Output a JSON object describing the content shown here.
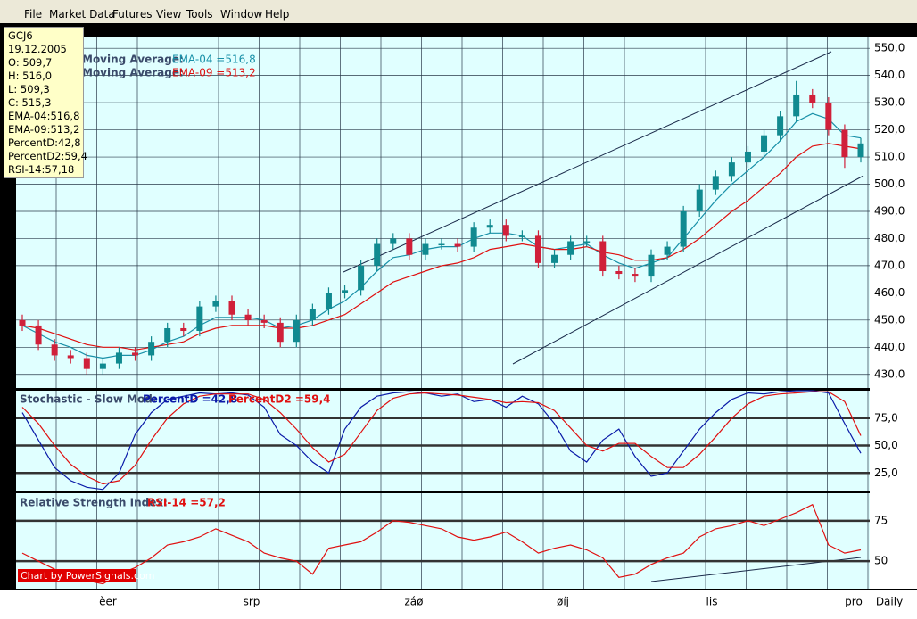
{
  "menu": [
    "File",
    "Market Data",
    "Futures",
    "View",
    "Tools",
    "Window",
    "Help"
  ],
  "info": [
    "GCJ6",
    "19.12.2005",
    "O: 509,7",
    "H: 516,0",
    "L: 509,3",
    "C: 515,3",
    "EMA-04:516,8",
    "EMA-09:513,2",
    "PercentD:42,8",
    "PercentD2:59,4",
    "RSI-14:57,18"
  ],
  "price": {
    "legend": [
      {
        "label": "Moving Average:",
        "name": "EMA-04 =516,8"
      },
      {
        "label": "Moving Average:",
        "name": "EMA-09 =513,2"
      }
    ],
    "ylim": [
      425,
      554
    ],
    "yticks": [
      {
        "value": 430,
        "label": "430,0"
      },
      {
        "value": 440,
        "label": "440,0"
      },
      {
        "value": 450,
        "label": "450,0"
      },
      {
        "value": 460,
        "label": "460,0"
      },
      {
        "value": 470,
        "label": "470,0"
      },
      {
        "value": 480,
        "label": "480,0"
      },
      {
        "value": 490,
        "label": "490,0"
      },
      {
        "value": 500,
        "label": "500,0"
      },
      {
        "value": 510,
        "label": "510,0"
      },
      {
        "value": 520,
        "label": "520,0"
      },
      {
        "value": 530,
        "label": "530,0"
      },
      {
        "value": 540,
        "label": "540,0"
      },
      {
        "value": 550,
        "label": "550,0"
      }
    ],
    "open": [
      450,
      448,
      441,
      437,
      436,
      432,
      434,
      438,
      437,
      442,
      447,
      446,
      455,
      457,
      452,
      450,
      449,
      442,
      450,
      454,
      460,
      461,
      470,
      478,
      480,
      474,
      478,
      478,
      477,
      484,
      485,
      481,
      481,
      471,
      474,
      479,
      479,
      468,
      467,
      466,
      474,
      477,
      490,
      498,
      503,
      508,
      512,
      518,
      525,
      533,
      530,
      520,
      510
    ],
    "high": [
      452,
      450,
      443,
      439,
      438,
      436,
      440,
      440,
      444,
      449,
      449,
      457,
      459,
      459,
      454,
      452,
      451,
      452,
      456,
      462,
      463,
      472,
      480,
      482,
      482,
      480,
      480,
      480,
      486,
      487,
      487,
      483,
      483,
      476,
      481,
      481,
      481,
      470,
      469,
      476,
      479,
      492,
      500,
      505,
      510,
      514,
      520,
      527,
      538,
      535,
      532,
      522,
      517
    ],
    "low": [
      446,
      439,
      435,
      434,
      430,
      430,
      432,
      435,
      435,
      440,
      444,
      444,
      453,
      450,
      448,
      447,
      440,
      440,
      448,
      452,
      458,
      459,
      468,
      476,
      472,
      472,
      476,
      475,
      475,
      482,
      479,
      479,
      469,
      469,
      472,
      477,
      466,
      465,
      464,
      464,
      472,
      475,
      488,
      496,
      501,
      506,
      510,
      516,
      523,
      528,
      518,
      506,
      508
    ],
    "close": [
      448,
      441,
      437,
      436,
      432,
      434,
      438,
      437,
      442,
      447,
      446,
      455,
      457,
      452,
      450,
      449,
      442,
      450,
      454,
      460,
      461,
      470,
      478,
      480,
      474,
      478,
      478,
      477,
      484,
      485,
      481,
      481,
      471,
      474,
      479,
      479,
      468,
      467,
      466,
      474,
      477,
      490,
      498,
      503,
      508,
      512,
      518,
      525,
      533,
      530,
      520,
      510,
      515
    ],
    "series": [
      {
        "color": "#1890a8",
        "values": [
          448,
          445,
          442,
          440,
          437,
          436,
          437,
          437,
          439,
          442,
          444,
          448,
          451,
          451,
          451,
          450,
          447,
          448,
          450,
          454,
          457,
          462,
          468,
          473,
          474,
          476,
          477,
          477,
          480,
          482,
          482,
          481,
          477,
          476,
          477,
          478,
          474,
          471,
          469,
          471,
          473,
          480,
          487,
          494,
          500,
          505,
          510,
          516,
          523,
          526,
          524,
          518,
          517
        ]
      },
      {
        "color": "#e01010",
        "values": [
          448,
          447,
          445,
          443,
          441,
          440,
          440,
          439,
          440,
          441,
          442,
          445,
          447,
          448,
          448,
          448,
          447,
          447,
          448,
          450,
          452,
          456,
          460,
          464,
          466,
          468,
          470,
          471,
          473,
          476,
          477,
          478,
          477,
          476,
          476,
          477,
          475,
          474,
          472,
          472,
          473,
          476,
          480,
          485,
          490,
          494,
          499,
          504,
          510,
          514,
          515,
          514,
          513
        ]
      }
    ]
  },
  "stochastic": {
    "title": "Stochastic - Slow Mod:",
    "ylim": [
      9,
      100
    ],
    "yticks": [
      {
        "value": 25,
        "label": "25,0"
      },
      {
        "value": 50,
        "label": "50,0"
      },
      {
        "value": 75,
        "label": "75,0"
      }
    ],
    "series": [
      {
        "name": "PercentD =42,8",
        "color": "#0a1aa8",
        "values": [
          80,
          55,
          30,
          18,
          12,
          10,
          25,
          60,
          80,
          92,
          95,
          98,
          97,
          98,
          96,
          85,
          60,
          50,
          35,
          25,
          65,
          85,
          95,
          98,
          99,
          98,
          95,
          97,
          90,
          92,
          85,
          95,
          88,
          70,
          45,
          35,
          55,
          65,
          40,
          22,
          25,
          45,
          65,
          80,
          92,
          98,
          97,
          99,
          100,
          100,
          98,
          70,
          43
        ]
      },
      {
        "name": "PercentD2 =59,4",
        "color": "#e01010",
        "values": [
          85,
          70,
          50,
          33,
          22,
          15,
          18,
          32,
          55,
          75,
          88,
          95,
          97,
          97,
          97,
          92,
          80,
          65,
          48,
          35,
          42,
          62,
          82,
          93,
          97,
          98,
          97,
          96,
          94,
          92,
          89,
          90,
          89,
          82,
          66,
          50,
          45,
          52,
          52,
          40,
          30,
          30,
          42,
          58,
          75,
          88,
          95,
          97,
          98,
          99,
          99,
          90,
          59
        ]
      }
    ]
  },
  "rsi": {
    "title": "Relative Strength Index:",
    "ylim": [
      33,
      92
    ],
    "yticks": [
      50,
      75
    ],
    "series": [
      {
        "name": "RSI-14 =57,2",
        "color": "#e01010",
        "values": [
          55,
          50,
          45,
          40,
          38,
          36,
          42,
          46,
          52,
          60,
          62,
          65,
          70,
          66,
          62,
          55,
          52,
          50,
          42,
          58,
          60,
          62,
          68,
          75,
          74,
          72,
          70,
          65,
          63,
          65,
          68,
          62,
          55,
          58,
          60,
          57,
          52,
          40,
          42,
          48,
          52,
          55,
          65,
          70,
          72,
          75,
          72,
          76,
          80,
          85,
          60,
          55,
          57
        ]
      }
    ],
    "badge": "Chart by PowerSignals.com"
  },
  "xlabels": [
    "èer",
    "srp",
    "záø",
    "øíj",
    "lis",
    "pro"
  ],
  "period": "Daily"
}
